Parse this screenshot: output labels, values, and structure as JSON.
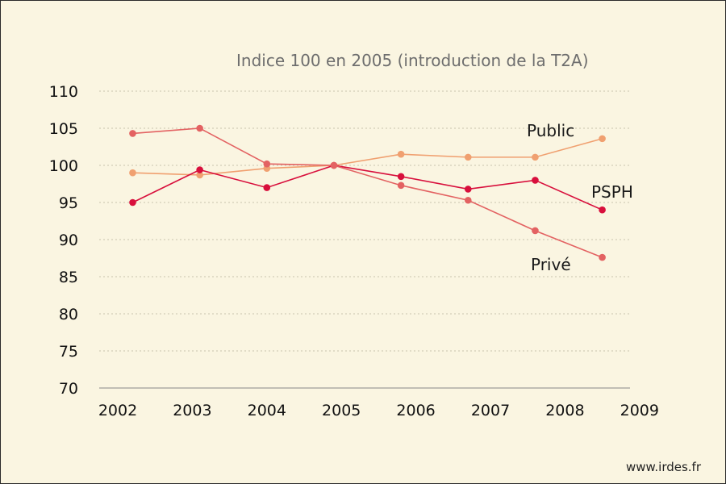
{
  "chart_data": {
    "type": "line",
    "subtitle": "Indice 100 en 2005 (introduction de la T2A)",
    "x_tick_labels": [
      "2002",
      "2003",
      "2004",
      "2005",
      "2006",
      "2007",
      "2008",
      "2009"
    ],
    "y_tick_labels": [
      "110",
      "105",
      "100",
      "95",
      "90",
      "85",
      "80",
      "75",
      "70"
    ],
    "ylim": [
      70,
      110
    ],
    "grid": true,
    "series": [
      {
        "name": "Public",
        "color": "#f0a070",
        "x": [
          2002.2,
          2003.1,
          2004.0,
          2004.9,
          2005.8,
          2006.7,
          2007.6,
          2008.5
        ],
        "values": [
          99.0,
          98.7,
          99.6,
          100.0,
          101.5,
          101.1,
          101.1,
          103.6
        ]
      },
      {
        "name": "PSPH",
        "color": "#d80f3c",
        "x": [
          2002.2,
          2003.1,
          2004.0,
          2004.9,
          2005.8,
          2006.7,
          2007.6,
          2008.5
        ],
        "values": [
          95.0,
          99.4,
          97.0,
          100.0,
          98.5,
          96.8,
          98.0,
          94.0
        ]
      },
      {
        "name": "Privé",
        "color": "#e36262",
        "x": [
          2002.2,
          2003.1,
          2004.0,
          2004.9,
          2005.8,
          2006.7,
          2007.6,
          2008.5
        ],
        "values": [
          104.3,
          105.0,
          100.2,
          100.0,
          97.3,
          95.3,
          91.2,
          87.6
        ]
      }
    ]
  },
  "footer": {
    "source": "www.irdes.fr"
  }
}
